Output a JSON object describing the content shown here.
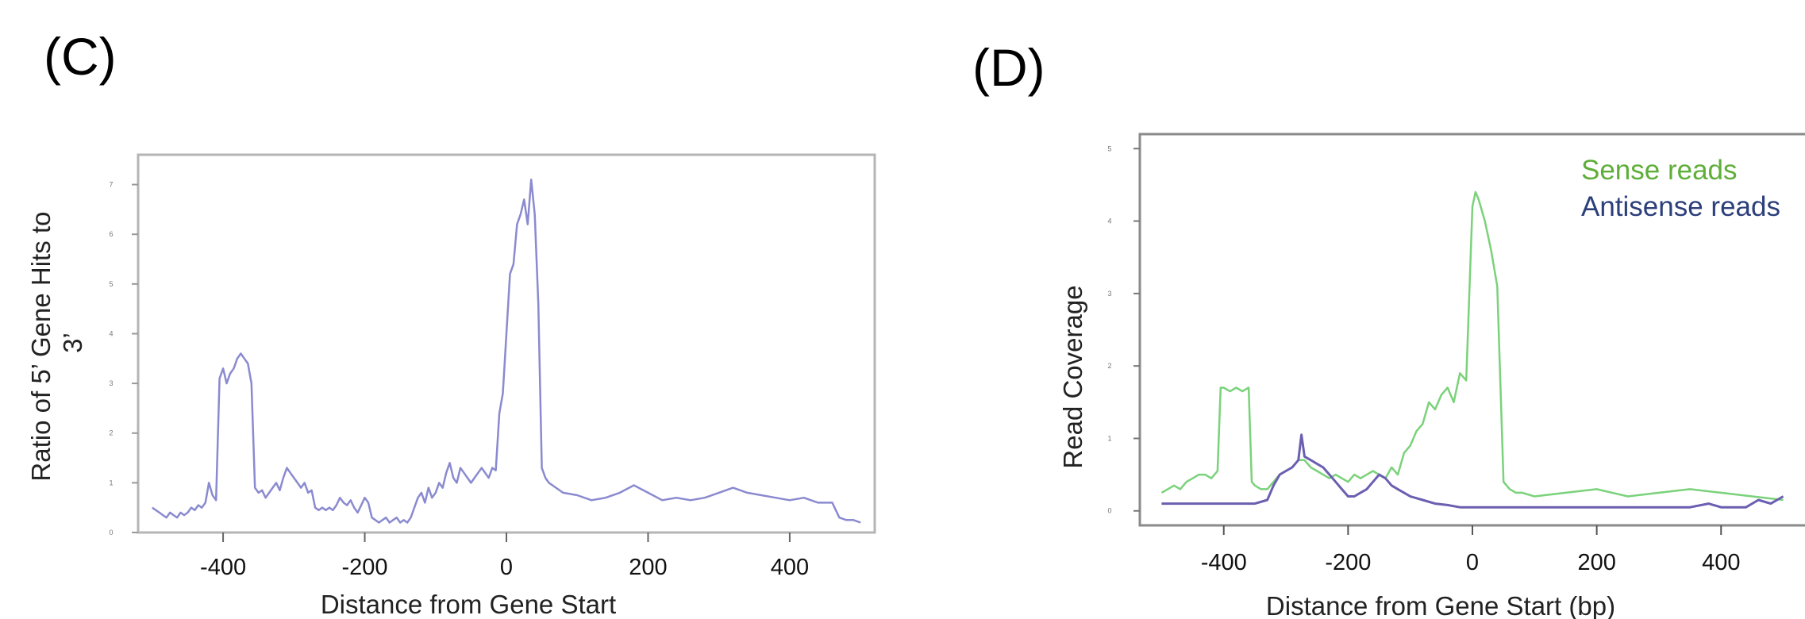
{
  "panels": {
    "c": {
      "label": "(C)"
    },
    "d": {
      "label": "(D)"
    }
  },
  "chart_data": [
    {
      "type": "line",
      "title": "",
      "xlabel": "Distance from Gene Start",
      "ylabel": "Ratio of 5’ Gene Hits to 3’",
      "xlim": [
        -520,
        520
      ],
      "ylim": [
        0,
        7.6
      ],
      "xticks": [
        -400,
        -200,
        0,
        200,
        400
      ],
      "xtick_labels": [
        "-400",
        "-200",
        "0",
        "200",
        "400"
      ],
      "yticks": [
        0,
        1,
        2,
        3,
        4,
        5,
        6,
        7
      ],
      "grid": false,
      "colors": {
        "line": "#8a8ad0"
      },
      "series": [
        {
          "x": [
            -500,
            -495,
            -490,
            -485,
            -480,
            -475,
            -470,
            -465,
            -460,
            -455,
            -450,
            -445,
            -440,
            -435,
            -430,
            -425,
            -420,
            -415,
            -410,
            -405,
            -400,
            -395,
            -390,
            -385,
            -380,
            -375,
            -370,
            -365,
            -360,
            -355,
            -350,
            -345,
            -340,
            -335,
            -330,
            -325,
            -320,
            -315,
            -310,
            -305,
            -300,
            -295,
            -290,
            -285,
            -280,
            -275,
            -270,
            -265,
            -260,
            -255,
            -250,
            -245,
            -240,
            -235,
            -230,
            -225,
            -220,
            -215,
            -210,
            -205,
            -200,
            -195,
            -190,
            -185,
            -180,
            -175,
            -170,
            -165,
            -160,
            -155,
            -150,
            -145,
            -140,
            -135,
            -130,
            -125,
            -120,
            -115,
            -110,
            -105,
            -100,
            -95,
            -90,
            -85,
            -80,
            -75,
            -70,
            -65,
            -60,
            -55,
            -50,
            -45,
            -40,
            -35,
            -30,
            -25,
            -20,
            -15,
            -10,
            -5,
            0,
            5,
            10,
            15,
            20,
            25,
            30,
            35,
            40,
            45,
            50,
            55,
            60,
            80,
            100,
            120,
            140,
            160,
            180,
            200,
            220,
            240,
            260,
            280,
            300,
            320,
            340,
            360,
            380,
            400,
            420,
            440,
            460,
            470,
            480,
            490,
            500
          ],
          "y": [
            0.5,
            0.45,
            0.4,
            0.35,
            0.3,
            0.4,
            0.35,
            0.3,
            0.4,
            0.35,
            0.4,
            0.5,
            0.45,
            0.55,
            0.5,
            0.6,
            1.0,
            0.75,
            0.65,
            3.1,
            3.3,
            3.0,
            3.2,
            3.3,
            3.5,
            3.6,
            3.5,
            3.4,
            3.0,
            0.9,
            0.8,
            0.85,
            0.7,
            0.8,
            0.9,
            1.0,
            0.85,
            1.1,
            1.3,
            1.2,
            1.1,
            1.0,
            0.9,
            1.0,
            0.8,
            0.85,
            0.5,
            0.45,
            0.5,
            0.45,
            0.5,
            0.45,
            0.55,
            0.7,
            0.6,
            0.55,
            0.65,
            0.5,
            0.4,
            0.55,
            0.7,
            0.6,
            0.3,
            0.25,
            0.2,
            0.25,
            0.3,
            0.2,
            0.25,
            0.3,
            0.2,
            0.25,
            0.2,
            0.3,
            0.5,
            0.7,
            0.8,
            0.6,
            0.9,
            0.7,
            0.8,
            1.0,
            0.9,
            1.2,
            1.4,
            1.1,
            1.0,
            1.3,
            1.2,
            1.1,
            1.0,
            1.1,
            1.2,
            1.3,
            1.2,
            1.1,
            1.3,
            1.25,
            2.4,
            2.8,
            4.0,
            5.2,
            5.4,
            6.2,
            6.4,
            6.7,
            6.2,
            7.1,
            6.4,
            4.6,
            1.3,
            1.1,
            1.0,
            0.8,
            0.75,
            0.65,
            0.7,
            0.8,
            0.95,
            0.8,
            0.65,
            0.7,
            0.65,
            0.7,
            0.8,
            0.9,
            0.8,
            0.75,
            0.7,
            0.65,
            0.7,
            0.6,
            0.6,
            0.3,
            0.25,
            0.25,
            0.2
          ]
        }
      ]
    },
    {
      "type": "line",
      "title": "",
      "xlabel": "Distance from Gene Start (bp)",
      "ylabel": "Read Coverage",
      "xlim": [
        -535,
        535
      ],
      "ylim": [
        -0.2,
        5.2
      ],
      "xticks": [
        -400,
        -200,
        0,
        200,
        400
      ],
      "xtick_labels": [
        "-400",
        "-200",
        "0",
        "200",
        "400"
      ],
      "yticks": [
        0,
        1,
        2,
        3,
        4,
        5
      ],
      "grid": false,
      "legend_position": "top-right",
      "series": [
        {
          "name": "Sense reads",
          "color": "#7ad27a",
          "x": [
            -500,
            -490,
            -480,
            -470,
            -460,
            -450,
            -440,
            -430,
            -420,
            -410,
            -405,
            -400,
            -390,
            -380,
            -370,
            -360,
            -355,
            -350,
            -340,
            -330,
            -320,
            -310,
            -300,
            -290,
            -280,
            -270,
            -260,
            -250,
            -240,
            -230,
            -220,
            -210,
            -200,
            -190,
            -180,
            -170,
            -160,
            -150,
            -140,
            -130,
            -120,
            -110,
            -100,
            -90,
            -80,
            -70,
            -60,
            -50,
            -40,
            -30,
            -20,
            -10,
            0,
            5,
            10,
            20,
            30,
            40,
            50,
            60,
            70,
            80,
            100,
            150,
            200,
            250,
            300,
            350,
            400,
            450,
            500
          ],
          "y": [
            0.25,
            0.3,
            0.35,
            0.3,
            0.4,
            0.45,
            0.5,
            0.5,
            0.45,
            0.55,
            1.7,
            1.7,
            1.65,
            1.7,
            1.65,
            1.7,
            0.4,
            0.35,
            0.3,
            0.3,
            0.4,
            0.5,
            0.55,
            0.6,
            0.7,
            0.7,
            0.6,
            0.55,
            0.5,
            0.45,
            0.5,
            0.45,
            0.4,
            0.5,
            0.45,
            0.5,
            0.55,
            0.5,
            0.45,
            0.6,
            0.5,
            0.8,
            0.9,
            1.1,
            1.2,
            1.5,
            1.4,
            1.6,
            1.7,
            1.5,
            1.9,
            1.8,
            4.2,
            4.4,
            4.3,
            4.0,
            3.6,
            3.1,
            0.4,
            0.3,
            0.25,
            0.25,
            0.2,
            0.25,
            0.3,
            0.2,
            0.25,
            0.3,
            0.25,
            0.2,
            0.15
          ]
        },
        {
          "name": "Antisense reads",
          "color": "#6a5fb0",
          "x": [
            -500,
            -450,
            -400,
            -350,
            -330,
            -320,
            -310,
            -300,
            -290,
            -280,
            -275,
            -270,
            -260,
            -250,
            -240,
            -230,
            -220,
            -210,
            -200,
            -190,
            -180,
            -170,
            -160,
            -150,
            -140,
            -130,
            -120,
            -110,
            -100,
            -80,
            -60,
            -40,
            -20,
            0,
            50,
            100,
            150,
            200,
            250,
            300,
            350,
            380,
            400,
            440,
            460,
            480,
            500
          ],
          "y": [
            0.1,
            0.1,
            0.1,
            0.1,
            0.15,
            0.35,
            0.5,
            0.55,
            0.6,
            0.7,
            1.05,
            0.75,
            0.7,
            0.65,
            0.6,
            0.5,
            0.4,
            0.3,
            0.2,
            0.2,
            0.25,
            0.3,
            0.4,
            0.5,
            0.45,
            0.35,
            0.3,
            0.25,
            0.2,
            0.15,
            0.1,
            0.08,
            0.05,
            0.05,
            0.05,
            0.05,
            0.05,
            0.05,
            0.05,
            0.05,
            0.05,
            0.1,
            0.05,
            0.05,
            0.15,
            0.1,
            0.2
          ]
        }
      ]
    }
  ]
}
